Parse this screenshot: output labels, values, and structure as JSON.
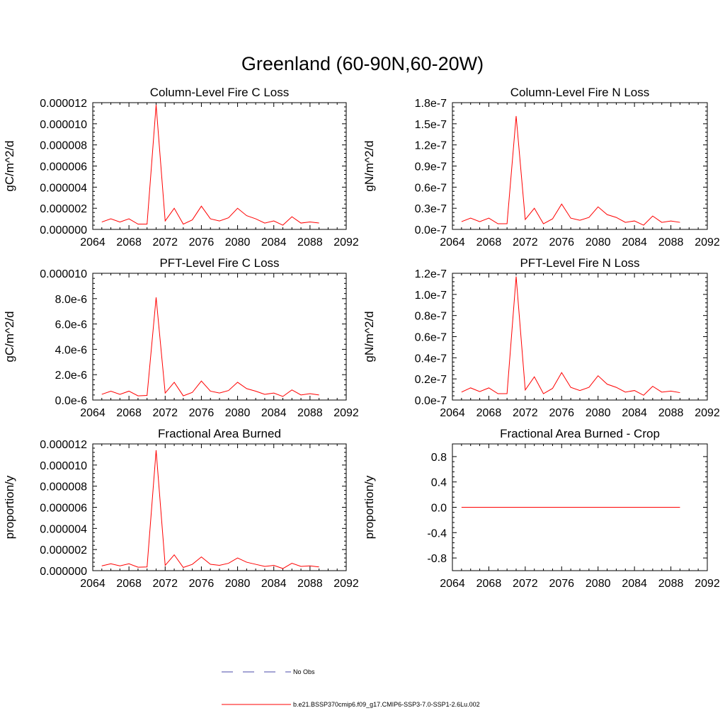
{
  "figure": {
    "title": "Greenland (60-90N,60-20W)"
  },
  "legend": [
    {
      "label": "No Obs",
      "color": "#4a4aa8",
      "dash": true
    },
    {
      "label": "b.e21.BSSP370cmip6.f09_g17.CMIP6-SSP3-7.0-SSP1-2.6Lu.002",
      "color": "#ff0000",
      "dash": false
    }
  ],
  "colors": {
    "series": "#ff0000",
    "axis": "#000000"
  },
  "chart_data": [
    {
      "type": "line",
      "title": "Column-Level Fire C Loss",
      "ylabel": "gC/m^2/d",
      "xlim": [
        2064,
        2092
      ],
      "ylim": [
        0,
        1.2e-05
      ],
      "xticks": [
        2064,
        2068,
        2072,
        2076,
        2080,
        2084,
        2088,
        2092
      ],
      "yticks": [
        0,
        2e-06,
        4e-06,
        6e-06,
        8e-06,
        1e-05,
        1.2e-05
      ],
      "ytick_labels": [
        "0.000000",
        "0.000002",
        "0.000004",
        "0.000006",
        "0.000008",
        "0.000010",
        "0.000012"
      ],
      "x": [
        2065,
        2066,
        2067,
        2068,
        2069,
        2070,
        2071,
        2072,
        2073,
        2074,
        2075,
        2076,
        2077,
        2078,
        2079,
        2080,
        2081,
        2082,
        2083,
        2084,
        2085,
        2086,
        2087,
        2088,
        2089
      ],
      "series": [
        {
          "color": "#ff0000",
          "values": [
            7e-07,
            1e-06,
            7e-07,
            1e-06,
            5e-07,
            5e-07,
            1.18e-05,
            8e-07,
            2e-06,
            5e-07,
            9e-07,
            2.2e-06,
            1e-06,
            8e-07,
            1.1e-06,
            2e-06,
            1.3e-06,
            1e-06,
            6e-07,
            8e-07,
            4e-07,
            1.2e-06,
            6e-07,
            7e-07,
            6e-07
          ]
        }
      ]
    },
    {
      "type": "line",
      "title": "Column-Level Fire N Loss",
      "ylabel": "gN/m^2/d",
      "xlim": [
        2064,
        2092
      ],
      "ylim": [
        0,
        1.8e-07
      ],
      "xticks": [
        2064,
        2068,
        2072,
        2076,
        2080,
        2084,
        2088,
        2092
      ],
      "yticks": [
        0,
        3e-08,
        6e-08,
        9e-08,
        1.2e-07,
        1.5e-07,
        1.8e-07
      ],
      "ytick_labels": [
        "0.0e-7",
        "0.3e-7",
        "0.6e-7",
        "0.9e-7",
        "1.2e-7",
        "1.5e-7",
        "1.8e-7"
      ],
      "x": [
        2065,
        2066,
        2067,
        2068,
        2069,
        2070,
        2071,
        2072,
        2073,
        2074,
        2075,
        2076,
        2077,
        2078,
        2079,
        2080,
        2081,
        2082,
        2083,
        2084,
        2085,
        2086,
        2087,
        2088,
        2089
      ],
      "series": [
        {
          "color": "#ff0000",
          "values": [
            1.1e-08,
            1.6e-08,
            1.1e-08,
            1.6e-08,
            8e-09,
            8e-09,
            1.61e-07,
            1.4e-08,
            3e-08,
            8e-09,
            1.5e-08,
            3.6e-08,
            1.6e-08,
            1.3e-08,
            1.7e-08,
            3.2e-08,
            2.1e-08,
            1.7e-08,
            1e-08,
            1.2e-08,
            6e-09,
            1.9e-08,
            1e-08,
            1.2e-08,
            1e-08
          ]
        }
      ]
    },
    {
      "type": "line",
      "title": "PFT-Level Fire C Loss",
      "ylabel": "gC/m^2/d",
      "xlim": [
        2064,
        2092
      ],
      "ylim": [
        0,
        1e-05
      ],
      "xticks": [
        2064,
        2068,
        2072,
        2076,
        2080,
        2084,
        2088,
        2092
      ],
      "yticks": [
        0,
        2e-06,
        4e-06,
        6e-06,
        8e-06,
        1e-05
      ],
      "ytick_labels": [
        "0.0e-6",
        "2.0e-6",
        "4.0e-6",
        "6.0e-6",
        "8.0e-6",
        "0.000010"
      ],
      "x": [
        2065,
        2066,
        2067,
        2068,
        2069,
        2070,
        2071,
        2072,
        2073,
        2074,
        2075,
        2076,
        2077,
        2078,
        2079,
        2080,
        2081,
        2082,
        2083,
        2084,
        2085,
        2086,
        2087,
        2088,
        2089
      ],
      "series": [
        {
          "color": "#ff0000",
          "values": [
            4.5e-07,
            7e-07,
            4.5e-07,
            7e-07,
            3.3e-07,
            3.6e-07,
            8.1e-06,
            5.5e-07,
            1.4e-06,
            3.3e-07,
            6e-07,
            1.5e-06,
            7e-07,
            5.5e-07,
            7.5e-07,
            1.4e-06,
            9e-07,
            7e-07,
            4.5e-07,
            5.5e-07,
            2.8e-07,
            8e-07,
            4e-07,
            5e-07,
            4e-07
          ]
        }
      ]
    },
    {
      "type": "line",
      "title": "PFT-Level Fire N Loss",
      "ylabel": "gN/m^2/d",
      "xlim": [
        2064,
        2092
      ],
      "ylim": [
        0,
        1.2e-07
      ],
      "xticks": [
        2064,
        2068,
        2072,
        2076,
        2080,
        2084,
        2088,
        2092
      ],
      "yticks": [
        0,
        2e-08,
        4e-08,
        6e-08,
        8e-08,
        1e-07,
        1.2e-07
      ],
      "ytick_labels": [
        "0.0e-7",
        "0.2e-7",
        "0.4e-7",
        "0.6e-7",
        "0.8e-7",
        "1.0e-7",
        "1.2e-7"
      ],
      "x": [
        2065,
        2066,
        2067,
        2068,
        2069,
        2070,
        2071,
        2072,
        2073,
        2074,
        2075,
        2076,
        2077,
        2078,
        2079,
        2080,
        2081,
        2082,
        2083,
        2084,
        2085,
        2086,
        2087,
        2088,
        2089
      ],
      "series": [
        {
          "color": "#ff0000",
          "values": [
            7.5e-09,
            1.15e-08,
            8e-09,
            1.15e-08,
            6e-09,
            6e-09,
            1.17e-07,
            9.5e-09,
            2.2e-08,
            6e-09,
            1.1e-08,
            2.6e-08,
            1.2e-08,
            9e-09,
            1.2e-08,
            2.3e-08,
            1.5e-08,
            1.2e-08,
            7.5e-09,
            9e-09,
            4.5e-09,
            1.3e-08,
            7.5e-09,
            8.5e-09,
            7e-09
          ]
        }
      ]
    },
    {
      "type": "line",
      "title": "Fractional Area Burned",
      "ylabel": "proportion/y",
      "xlim": [
        2064,
        2092
      ],
      "ylim": [
        0,
        1.2e-05
      ],
      "xticks": [
        2064,
        2068,
        2072,
        2076,
        2080,
        2084,
        2088,
        2092
      ],
      "yticks": [
        0,
        2e-06,
        4e-06,
        6e-06,
        8e-06,
        1e-05,
        1.2e-05
      ],
      "ytick_labels": [
        "0.000000",
        "0.000002",
        "0.000004",
        "0.000006",
        "0.000008",
        "0.000010",
        "0.000012"
      ],
      "x": [
        2065,
        2066,
        2067,
        2068,
        2069,
        2070,
        2071,
        2072,
        2073,
        2074,
        2075,
        2076,
        2077,
        2078,
        2079,
        2080,
        2081,
        2082,
        2083,
        2084,
        2085,
        2086,
        2087,
        2088,
        2089
      ],
      "series": [
        {
          "color": "#ff0000",
          "values": [
            4.5e-07,
            6.5e-07,
            4.5e-07,
            6.5e-07,
            3.3e-07,
            3.5e-07,
            1.14e-05,
            5e-07,
            1.5e-06,
            3e-07,
            6e-07,
            1.3e-06,
            6e-07,
            5e-07,
            7e-07,
            1.2e-06,
            8e-07,
            6e-07,
            4e-07,
            5e-07,
            2e-07,
            7e-07,
            4e-07,
            4.5e-07,
            3.5e-07
          ]
        }
      ]
    },
    {
      "type": "line",
      "title": "Fractional Area Burned - Crop",
      "ylabel": "proportion/y",
      "xlim": [
        2064,
        2092
      ],
      "ylim": [
        -1,
        1
      ],
      "xticks": [
        2064,
        2068,
        2072,
        2076,
        2080,
        2084,
        2088,
        2092
      ],
      "yticks": [
        -0.8,
        -0.4,
        0,
        0.4,
        0.8
      ],
      "ytick_labels": [
        "-0.8",
        "-0.4",
        "0.0",
        "0.4",
        "0.8"
      ],
      "x": [
        2065,
        2066,
        2067,
        2068,
        2069,
        2070,
        2071,
        2072,
        2073,
        2074,
        2075,
        2076,
        2077,
        2078,
        2079,
        2080,
        2081,
        2082,
        2083,
        2084,
        2085,
        2086,
        2087,
        2088,
        2089
      ],
      "series": [
        {
          "color": "#ff0000",
          "values": [
            0,
            0,
            0,
            0,
            0,
            0,
            0,
            0,
            0,
            0,
            0,
            0,
            0,
            0,
            0,
            0,
            0,
            0,
            0,
            0,
            0,
            0,
            0,
            0,
            0
          ]
        }
      ]
    }
  ]
}
